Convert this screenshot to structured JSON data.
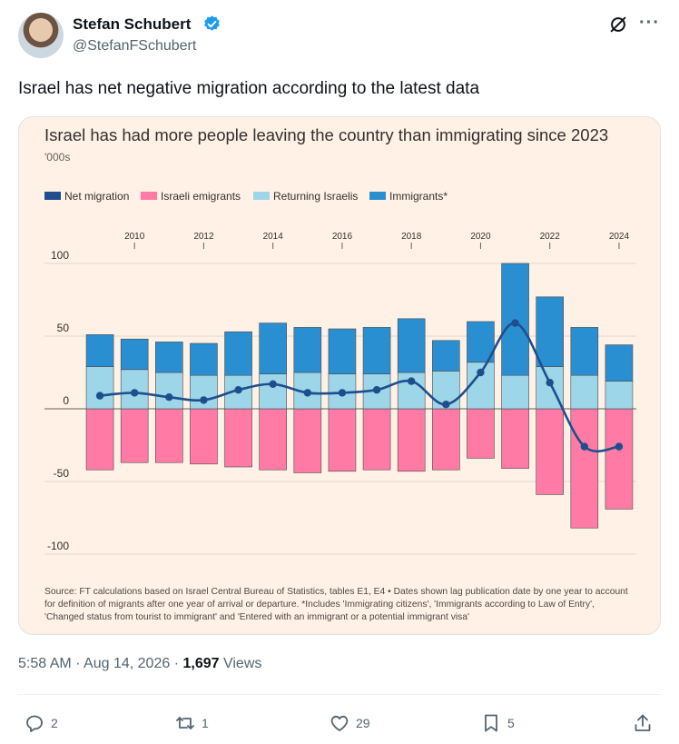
{
  "author": {
    "name": "Stefan Schubert",
    "handle": "@StefanFSchubert"
  },
  "tweet": {
    "text": "Israel has net negative migration according to the latest data",
    "time": "5:58 AM",
    "date": "Aug 14, 2026",
    "views": "1,697",
    "views_label": "Views"
  },
  "actions": {
    "replies": "2",
    "reposts": "1",
    "likes": "29",
    "bookmarks": "5"
  },
  "icons": [
    "verified-badge-icon",
    "grok-icon",
    "more-icon",
    "reply-icon",
    "repost-icon",
    "like-icon",
    "bookmark-icon",
    "share-icon"
  ],
  "colors": {
    "net_migration": "#1f4e8c",
    "emigrants": "#ff7ba5",
    "returning": "#9dd5e9",
    "immigrants": "#2a8fd1",
    "chart_bg": "#fff1e5"
  },
  "chart_data": {
    "type": "bar",
    "title": "Israel has had more people leaving the country than immigrating since 2023",
    "subtitle": "'000s",
    "x": [
      2009,
      2010,
      2011,
      2012,
      2013,
      2014,
      2015,
      2016,
      2017,
      2018,
      2019,
      2020,
      2021,
      2022,
      2023,
      2024
    ],
    "x_tick_labels": [
      "2010",
      "2012",
      "2014",
      "2016",
      "2018",
      "2020",
      "2022",
      "2024"
    ],
    "x_ticks": [
      2010,
      2012,
      2014,
      2016,
      2018,
      2020,
      2022,
      2024
    ],
    "y_ticks": [
      100,
      50,
      0,
      -50,
      -100
    ],
    "ylim": [
      -100,
      100
    ],
    "legend_position": "top-left",
    "series": [
      {
        "name": "Net migration",
        "kind": "line",
        "values": [
          9,
          11,
          8,
          6,
          13,
          17,
          11,
          11,
          13,
          19,
          3,
          25,
          59,
          18,
          -26,
          -26
        ]
      },
      {
        "name": "Israeli emigrants",
        "kind": "bar",
        "values": [
          -42,
          -37,
          -37,
          -38,
          -40,
          -42,
          -44,
          -43,
          -42,
          -43,
          -42,
          -34,
          -41,
          -59,
          -82,
          -69
        ]
      },
      {
        "name": "Returning Israelis",
        "kind": "bar",
        "values": [
          29,
          27,
          25,
          23,
          23,
          24,
          25,
          24,
          24,
          25,
          26,
          32,
          23,
          29,
          23,
          19
        ]
      },
      {
        "name": "Immigrants*",
        "kind": "bar",
        "values": [
          22,
          21,
          21,
          22,
          30,
          35,
          31,
          31,
          32,
          37,
          21,
          28,
          77,
          48,
          33,
          25
        ]
      }
    ],
    "source": "Source: FT calculations based on Israel Central Bureau of Statistics, tables E1, E4 • Dates shown lag publication date by one year to account for definition of migrants after one year of arrival or departure. *Includes 'Immigrating citizens', 'Immigrants according to Law of Entry', 'Changed status from tourist to immigrant' and 'Entered with an immigrant or a potential immigrant visa'"
  }
}
